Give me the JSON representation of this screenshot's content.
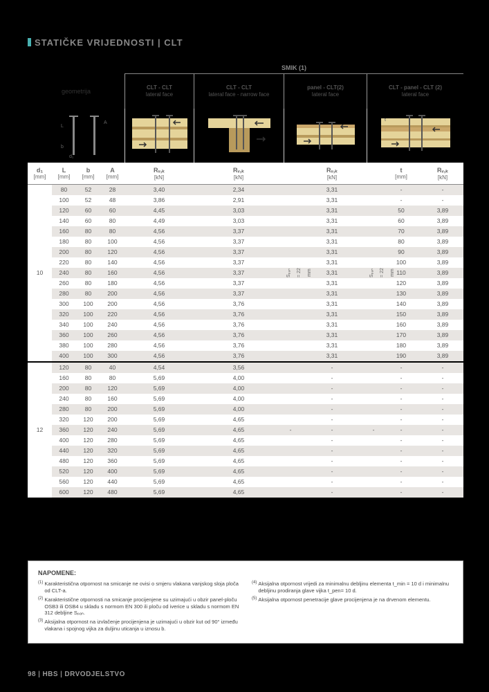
{
  "title": "STATIČKE VRIJEDNOSTI | CLT",
  "smik": "SMIK (1)",
  "headers": {
    "geom": "geometrija",
    "c1a": "CLT - CLT",
    "c1b": "lateral face",
    "c2a": "CLT - CLT",
    "c2b": "lateral face - narrow face",
    "c3a": "panel - CLT(2)",
    "c3b": "lateral face",
    "c4a": "CLT - panel - CLT (2)",
    "c4b": "lateral face"
  },
  "units": {
    "d1": "d₁",
    "L": "L",
    "b": "b",
    "A": "A",
    "mm": "[mm]",
    "rvk": "Rᵥ,ₖ",
    "kn": "[kN]",
    "t": "t"
  },
  "span_label": "Sₚₐₙ = 22 mm",
  "groups": [
    {
      "d1": "10",
      "rows": [
        {
          "L": "80",
          "b": "52",
          "A": "28",
          "r1": "3,40",
          "r2": "2,34",
          "r3": "3,31",
          "t": "-",
          "r4": "-"
        },
        {
          "L": "100",
          "b": "52",
          "A": "48",
          "r1": "3,86",
          "r2": "2,91",
          "r3": "3,31",
          "t": "-",
          "r4": "-"
        },
        {
          "L": "120",
          "b": "60",
          "A": "60",
          "r1": "4,45",
          "r2": "3,03",
          "r3": "3,31",
          "t": "50",
          "r4": "3,89"
        },
        {
          "L": "140",
          "b": "60",
          "A": "80",
          "r1": "4,49",
          "r2": "3,03",
          "r3": "3,31",
          "t": "60",
          "r4": "3,89"
        },
        {
          "L": "160",
          "b": "80",
          "A": "80",
          "r1": "4,56",
          "r2": "3,37",
          "r3": "3,31",
          "t": "70",
          "r4": "3,89"
        },
        {
          "L": "180",
          "b": "80",
          "A": "100",
          "r1": "4,56",
          "r2": "3,37",
          "r3": "3,31",
          "t": "80",
          "r4": "3,89"
        },
        {
          "L": "200",
          "b": "80",
          "A": "120",
          "r1": "4,56",
          "r2": "3,37",
          "r3": "3,31",
          "t": "90",
          "r4": "3,89"
        },
        {
          "L": "220",
          "b": "80",
          "A": "140",
          "r1": "4,56",
          "r2": "3,37",
          "r3": "3,31",
          "t": "100",
          "r4": "3,89"
        },
        {
          "L": "240",
          "b": "80",
          "A": "160",
          "r1": "4,56",
          "r2": "3,37",
          "r3": "3,31",
          "t": "110",
          "r4": "3,89"
        },
        {
          "L": "260",
          "b": "80",
          "A": "180",
          "r1": "4,56",
          "r2": "3,37",
          "r3": "3,31",
          "t": "120",
          "r4": "3,89"
        },
        {
          "L": "280",
          "b": "80",
          "A": "200",
          "r1": "4,56",
          "r2": "3,37",
          "r3": "3,31",
          "t": "130",
          "r4": "3,89"
        },
        {
          "L": "300",
          "b": "100",
          "A": "200",
          "r1": "4,56",
          "r2": "3,76",
          "r3": "3,31",
          "t": "140",
          "r4": "3,89"
        },
        {
          "L": "320",
          "b": "100",
          "A": "220",
          "r1": "4,56",
          "r2": "3,76",
          "r3": "3,31",
          "t": "150",
          "r4": "3,89"
        },
        {
          "L": "340",
          "b": "100",
          "A": "240",
          "r1": "4,56",
          "r2": "3,76",
          "r3": "3,31",
          "t": "160",
          "r4": "3,89"
        },
        {
          "L": "360",
          "b": "100",
          "A": "260",
          "r1": "4,56",
          "r2": "3,76",
          "r3": "3,31",
          "t": "170",
          "r4": "3,89"
        },
        {
          "L": "380",
          "b": "100",
          "A": "280",
          "r1": "4,56",
          "r2": "3,76",
          "r3": "3,31",
          "t": "180",
          "r4": "3,89"
        },
        {
          "L": "400",
          "b": "100",
          "A": "300",
          "r1": "4,56",
          "r2": "3,76",
          "r3": "3,31",
          "t": "190",
          "r4": "3,89"
        }
      ]
    },
    {
      "d1": "12",
      "rows": [
        {
          "L": "120",
          "b": "80",
          "A": "40",
          "r1": "4,54",
          "r2": "3,56",
          "r3": "-",
          "t": "-",
          "r4": "-"
        },
        {
          "L": "160",
          "b": "80",
          "A": "80",
          "r1": "5,69",
          "r2": "4,00",
          "r3": "-",
          "t": "-",
          "r4": "-"
        },
        {
          "L": "200",
          "b": "80",
          "A": "120",
          "r1": "5,69",
          "r2": "4,00",
          "r3": "-",
          "t": "-",
          "r4": "-"
        },
        {
          "L": "240",
          "b": "80",
          "A": "160",
          "r1": "5,69",
          "r2": "4,00",
          "r3": "-",
          "t": "-",
          "r4": "-"
        },
        {
          "L": "280",
          "b": "80",
          "A": "200",
          "r1": "5,69",
          "r2": "4,00",
          "r3": "-",
          "t": "-",
          "r4": "-"
        },
        {
          "L": "320",
          "b": "120",
          "A": "200",
          "r1": "5,69",
          "r2": "4,65",
          "r3": "-",
          "t": "-",
          "r4": "-"
        },
        {
          "L": "360",
          "b": "120",
          "A": "240",
          "r1": "5,69",
          "r2": "4,65",
          "r3": "-",
          "t": "-",
          "r4": "-"
        },
        {
          "L": "400",
          "b": "120",
          "A": "280",
          "r1": "5,69",
          "r2": "4,65",
          "r3": "-",
          "t": "-",
          "r4": "-"
        },
        {
          "L": "440",
          "b": "120",
          "A": "320",
          "r1": "5,69",
          "r2": "4,65",
          "r3": "-",
          "t": "-",
          "r4": "-"
        },
        {
          "L": "480",
          "b": "120",
          "A": "360",
          "r1": "5,69",
          "r2": "4,65",
          "r3": "-",
          "t": "-",
          "r4": "-"
        },
        {
          "L": "520",
          "b": "120",
          "A": "400",
          "r1": "5,69",
          "r2": "4,65",
          "r3": "-",
          "t": "-",
          "r4": "-"
        },
        {
          "L": "560",
          "b": "120",
          "A": "440",
          "r1": "5,69",
          "r2": "4,65",
          "r3": "-",
          "t": "-",
          "r4": "-"
        },
        {
          "L": "600",
          "b": "120",
          "A": "480",
          "r1": "5,69",
          "r2": "4,65",
          "r3": "-",
          "t": "-",
          "r4": "-"
        }
      ]
    }
  ],
  "notes_title": "NAPOMENE:",
  "notes_left": [
    {
      "n": "(1)",
      "t": "Karakteristična otpornost na smicanje ne ovisi o smjeru vlakana vanjskog sloja ploča od CLT-a."
    },
    {
      "n": "(2)",
      "t": "Karakteristične otpornosti na smicanje procijenjene su uzimajući u obzir panel-ploču OSB3 ili OSB4 u skladu s normom EN 300 ili ploču od iverice u skladu s normom EN 312 debljine Sₚₐₙ."
    },
    {
      "n": "(3)",
      "t": "Aksijalna otpornost na izvlačenje procijenjena je uzimajući u obzir kut od 90° između vlakana i spojnog vijka za duljinu uticanja u iznosu b."
    }
  ],
  "notes_right": [
    {
      "n": "(4)",
      "t": "Aksijalna otpornost vrijedi za minimalnu debljinu elementa t_min = 10 d i minimalnu debljinu prodiranja glave vijka t_pen= 10 d."
    },
    {
      "n": "(5)",
      "t": "Aksijalna otpornost penetracije glave procijenjena je na drvenom elementu."
    }
  ],
  "footer": {
    "page": "98",
    "brand": "HBS",
    "section": "DRVODJELSTVO"
  },
  "colors": {
    "wood": "#e5d49a",
    "wood_dark": "#b89a5c",
    "teal": "#49b0b0"
  }
}
